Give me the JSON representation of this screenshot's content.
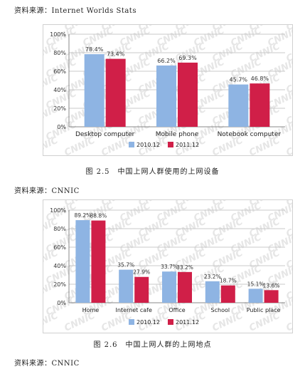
{
  "source_top": "资料来源：Internet Worlds Stats",
  "caption_1": "图 2.5　中国上网人群使用的上网设备",
  "source_mid": "资料来源：CNNIC",
  "caption_2": "图 2.6　中国上网人群的上网地点",
  "source_bottom": "资料来源：CNNIC",
  "watermark": "CNNIC",
  "colors": {
    "series_2010": "#8eb4e3",
    "series_2011": "#d01f48"
  },
  "chart_data": [
    {
      "type": "bar",
      "categories": [
        "Desktop computer",
        "Mobile phone",
        "Notebook computer"
      ],
      "series": [
        {
          "name": "2010.12",
          "values": [
            78.4,
            66.2,
            45.7
          ],
          "labels": [
            "78.4%",
            "66.2%",
            "45.7%"
          ]
        },
        {
          "name": "2011.12",
          "values": [
            73.4,
            69.3,
            46.8
          ],
          "labels": [
            "73.4%",
            "69.3%",
            "46.8%"
          ]
        }
      ],
      "ylim": [
        0,
        100
      ],
      "yticks": [
        "0%",
        "20%",
        "40%",
        "60%",
        "80%",
        "100%"
      ],
      "legend_position": "bottom"
    },
    {
      "type": "bar",
      "categories": [
        "Home",
        "Internet cafe",
        "Office",
        "School",
        "Public place"
      ],
      "series": [
        {
          "name": "2010.12",
          "values": [
            89.2,
            35.7,
            33.7,
            23.2,
            15.1
          ],
          "labels": [
            "89.2%",
            "35.7%",
            "33.7%",
            "23.2%",
            "15.1%"
          ]
        },
        {
          "name": "2011.12",
          "values": [
            88.8,
            27.9,
            33.2,
            18.7,
            13.6
          ],
          "labels": [
            "88.8%",
            "27.9%",
            "33.2%",
            "18.7%",
            "13.6%"
          ]
        }
      ],
      "ylim": [
        0,
        100
      ],
      "yticks": [
        "0%",
        "20%",
        "40%",
        "60%",
        "80%",
        "100%"
      ],
      "legend_position": "bottom"
    }
  ]
}
